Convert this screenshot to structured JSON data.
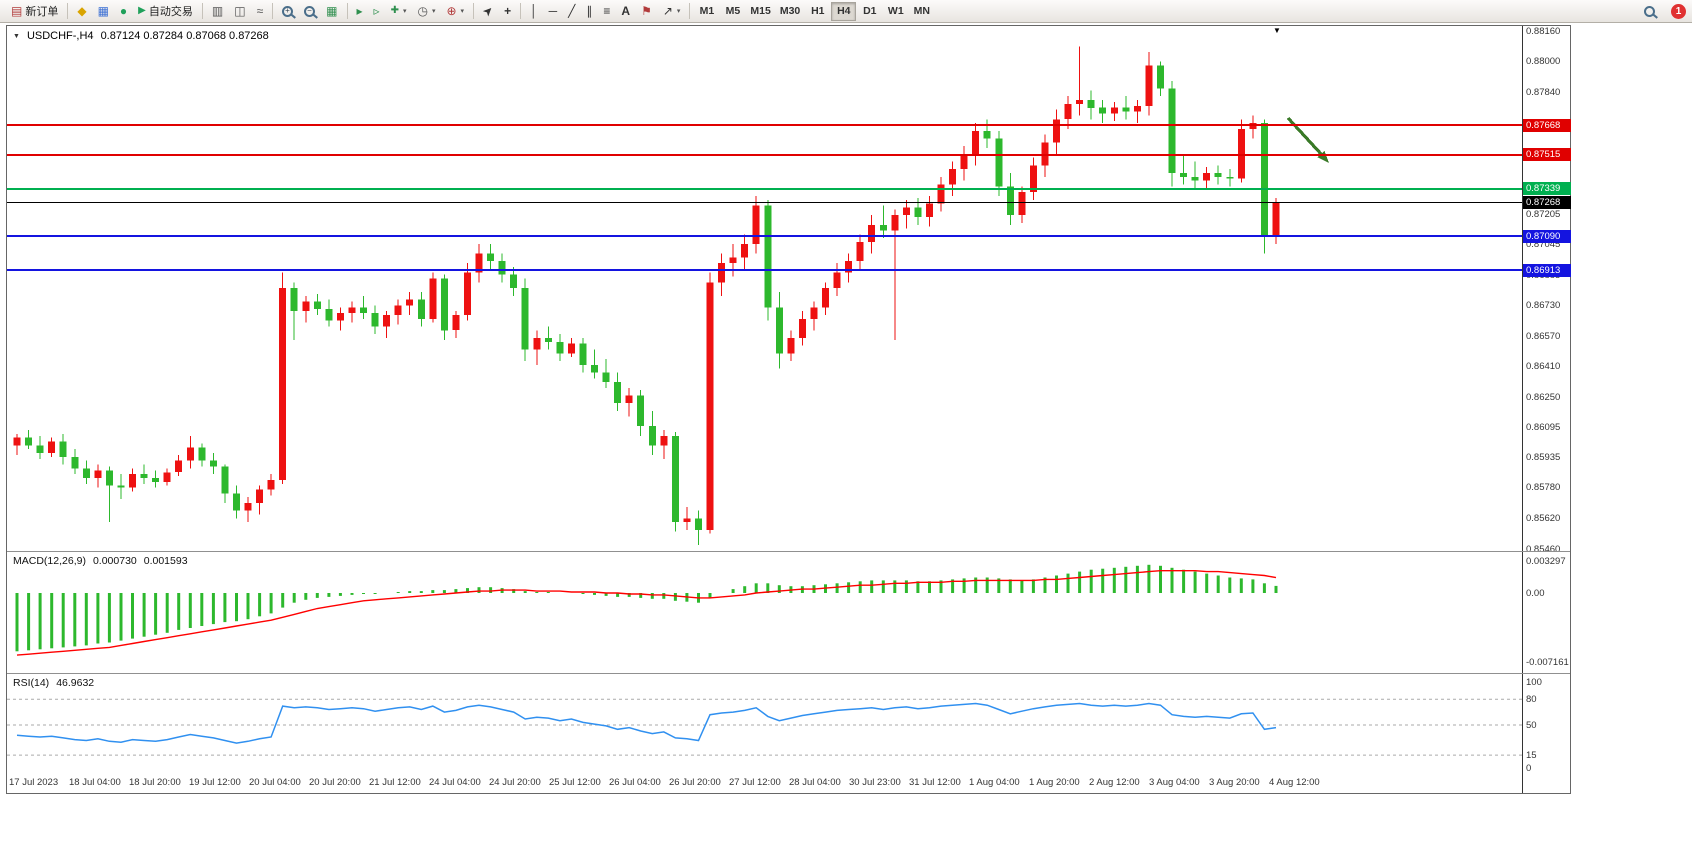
{
  "app": {
    "badge_count": "1"
  },
  "toolbar": {
    "new_order_label": "新订单",
    "auto_trading_label": "自动交易",
    "timeframes": [
      "M1",
      "M5",
      "M15",
      "M30",
      "H1",
      "H4",
      "D1",
      "W1",
      "MN"
    ],
    "active_timeframe": "H4"
  },
  "icons": {
    "new_order": "▤",
    "market_watch": "◆",
    "data_window": "▦",
    "navigator": "●",
    "autotrading_play": "▶",
    "bar_chart": "▥",
    "candle_chart": "◫",
    "line_chart": "≈",
    "tile_windows": "▦",
    "auto_scroll": "▸",
    "chart_shift": "▹",
    "new_chart": "✚",
    "periods": "◷",
    "indicators": "⊕",
    "cursor": "➤",
    "crosshair": "+",
    "vline": "│",
    "hline": "─",
    "trendline": "╱",
    "channel": "∥",
    "fibonacci": "≡",
    "text_tool": "A",
    "label_tool": "⚑",
    "shapes": "↗",
    "caret": "▾",
    "zoom_plus": "+",
    "zoom_minus": "−",
    "title_caret": "▼",
    "triangle_marker": "▼"
  },
  "chart_data": {
    "type": "candlestick",
    "symbol_period": "USDCHF-,H4",
    "ohlc_text": "0.87124 0.87284 0.87068 0.87268",
    "current_price": "0.87268",
    "convention": "red=up green=down",
    "price_axis": {
      "max": 0.8816,
      "min": 0.8546,
      "ticks": [
        "0.88160",
        "0.88000",
        "0.87840",
        "0.87205",
        "0.87045",
        "0.86885",
        "0.86730",
        "0.86570",
        "0.86410",
        "0.86250",
        "0.86095",
        "0.85935",
        "0.85780",
        "0.85620",
        "0.85460"
      ]
    },
    "hlines": [
      {
        "price": 0.87668,
        "label": "0.87668",
        "color": "#e00000",
        "width": 2,
        "role": "resistance"
      },
      {
        "price": 0.87515,
        "label": "0.87515",
        "color": "#e00000",
        "width": 2,
        "role": "resistance"
      },
      {
        "price": 0.87339,
        "label": "0.87339",
        "color": "#00b050",
        "width": 2,
        "role": "support"
      },
      {
        "price": 0.87268,
        "label": "0.87268",
        "color": "#000000",
        "width": 1,
        "role": "current-price"
      },
      {
        "price": 0.8709,
        "label": "0.87090",
        "color": "#1414e0",
        "width": 2,
        "role": "support"
      },
      {
        "price": 0.86913,
        "label": "0.86913",
        "color": "#1414e0",
        "width": 2,
        "role": "support"
      }
    ],
    "colors": {
      "up": "#ee1111",
      "down": "#2db82d",
      "macd_bar": "#2db82d",
      "macd_signal": "#ff0000",
      "rsi_line": "#3090f0",
      "arrow": "#3a7a28"
    },
    "candles": [
      [
        0.86,
        0.8606,
        0.8595,
        0.8604
      ],
      [
        0.8604,
        0.8608,
        0.8598,
        0.86
      ],
      [
        0.86,
        0.8605,
        0.8593,
        0.8596
      ],
      [
        0.8596,
        0.8604,
        0.8594,
        0.8602
      ],
      [
        0.8602,
        0.8606,
        0.859,
        0.8594
      ],
      [
        0.8594,
        0.8598,
        0.8585,
        0.8588
      ],
      [
        0.8588,
        0.8592,
        0.858,
        0.8583
      ],
      [
        0.8583,
        0.859,
        0.8578,
        0.8587
      ],
      [
        0.8587,
        0.8589,
        0.856,
        0.8579
      ],
      [
        0.8579,
        0.8585,
        0.8572,
        0.8578
      ],
      [
        0.8578,
        0.8588,
        0.8576,
        0.8585
      ],
      [
        0.8585,
        0.859,
        0.858,
        0.8583
      ],
      [
        0.8583,
        0.8587,
        0.8578,
        0.8581
      ],
      [
        0.8581,
        0.8588,
        0.8579,
        0.8586
      ],
      [
        0.8586,
        0.8595,
        0.8584,
        0.8592
      ],
      [
        0.8592,
        0.8605,
        0.8588,
        0.8599
      ],
      [
        0.8599,
        0.8601,
        0.8589,
        0.8592
      ],
      [
        0.8592,
        0.8596,
        0.8585,
        0.8589
      ],
      [
        0.8589,
        0.859,
        0.857,
        0.8575
      ],
      [
        0.8575,
        0.8579,
        0.8562,
        0.8566
      ],
      [
        0.8566,
        0.8573,
        0.856,
        0.857
      ],
      [
        0.857,
        0.8579,
        0.8564,
        0.8577
      ],
      [
        0.8577,
        0.8585,
        0.8574,
        0.8582
      ],
      [
        0.8582,
        0.869,
        0.858,
        0.8682
      ],
      [
        0.8682,
        0.8685,
        0.8655,
        0.867
      ],
      [
        0.867,
        0.8678,
        0.8664,
        0.8675
      ],
      [
        0.8675,
        0.8679,
        0.8668,
        0.8671
      ],
      [
        0.8671,
        0.8676,
        0.8662,
        0.8665
      ],
      [
        0.8665,
        0.8672,
        0.866,
        0.8669
      ],
      [
        0.8669,
        0.8675,
        0.8664,
        0.8672
      ],
      [
        0.8672,
        0.8678,
        0.8666,
        0.8669
      ],
      [
        0.8669,
        0.8673,
        0.8658,
        0.8662
      ],
      [
        0.8662,
        0.867,
        0.8656,
        0.8668
      ],
      [
        0.8668,
        0.8676,
        0.8663,
        0.8673
      ],
      [
        0.8673,
        0.868,
        0.8668,
        0.8676
      ],
      [
        0.8676,
        0.868,
        0.8662,
        0.8666
      ],
      [
        0.8666,
        0.869,
        0.8664,
        0.8687
      ],
      [
        0.8687,
        0.8689,
        0.8655,
        0.866
      ],
      [
        0.866,
        0.867,
        0.8656,
        0.8668
      ],
      [
        0.8668,
        0.8695,
        0.8665,
        0.869
      ],
      [
        0.869,
        0.8705,
        0.8685,
        0.87
      ],
      [
        0.87,
        0.8705,
        0.8692,
        0.8696
      ],
      [
        0.8696,
        0.87,
        0.8685,
        0.8689
      ],
      [
        0.8689,
        0.8693,
        0.8678,
        0.8682
      ],
      [
        0.8682,
        0.8687,
        0.8644,
        0.865
      ],
      [
        0.865,
        0.866,
        0.8642,
        0.8656
      ],
      [
        0.8656,
        0.8662,
        0.865,
        0.8654
      ],
      [
        0.8654,
        0.8658,
        0.8644,
        0.8648
      ],
      [
        0.8648,
        0.8656,
        0.8646,
        0.8653
      ],
      [
        0.8653,
        0.8656,
        0.8638,
        0.8642
      ],
      [
        0.8642,
        0.865,
        0.8635,
        0.8638
      ],
      [
        0.8638,
        0.8645,
        0.863,
        0.8633
      ],
      [
        0.8633,
        0.8638,
        0.8618,
        0.8622
      ],
      [
        0.8622,
        0.863,
        0.8615,
        0.8626
      ],
      [
        0.8626,
        0.8629,
        0.8605,
        0.861
      ],
      [
        0.861,
        0.8618,
        0.8595,
        0.86
      ],
      [
        0.86,
        0.8608,
        0.8593,
        0.8605
      ],
      [
        0.8605,
        0.8607,
        0.8555,
        0.856
      ],
      [
        0.856,
        0.8568,
        0.8556,
        0.8562
      ],
      [
        0.8562,
        0.8566,
        0.8548,
        0.8556
      ],
      [
        0.8556,
        0.869,
        0.8554,
        0.8685
      ],
      [
        0.8685,
        0.87,
        0.8678,
        0.8695
      ],
      [
        0.8695,
        0.8705,
        0.8688,
        0.8698
      ],
      [
        0.8698,
        0.871,
        0.8692,
        0.8705
      ],
      [
        0.8705,
        0.873,
        0.87,
        0.8725
      ],
      [
        0.8725,
        0.8728,
        0.8665,
        0.8672
      ],
      [
        0.8672,
        0.868,
        0.864,
        0.8648
      ],
      [
        0.8648,
        0.866,
        0.8644,
        0.8656
      ],
      [
        0.8656,
        0.867,
        0.8652,
        0.8666
      ],
      [
        0.8666,
        0.8675,
        0.866,
        0.8672
      ],
      [
        0.8672,
        0.8685,
        0.8668,
        0.8682
      ],
      [
        0.8682,
        0.8695,
        0.8678,
        0.869
      ],
      [
        0.869,
        0.87,
        0.8685,
        0.8696
      ],
      [
        0.8696,
        0.871,
        0.8692,
        0.8706
      ],
      [
        0.8706,
        0.872,
        0.87,
        0.8715
      ],
      [
        0.8715,
        0.8725,
        0.8708,
        0.8712
      ],
      [
        0.8712,
        0.8723,
        0.8655,
        0.872
      ],
      [
        0.872,
        0.8728,
        0.8713,
        0.8724
      ],
      [
        0.8724,
        0.8729,
        0.8715,
        0.8719
      ],
      [
        0.8719,
        0.873,
        0.8714,
        0.8726
      ],
      [
        0.8726,
        0.874,
        0.8722,
        0.8736
      ],
      [
        0.8736,
        0.8748,
        0.873,
        0.8744
      ],
      [
        0.8744,
        0.8756,
        0.8738,
        0.8752
      ],
      [
        0.8752,
        0.8768,
        0.8746,
        0.8764
      ],
      [
        0.8764,
        0.877,
        0.8755,
        0.876
      ],
      [
        0.876,
        0.8764,
        0.873,
        0.8735
      ],
      [
        0.8735,
        0.8742,
        0.8715,
        0.872
      ],
      [
        0.872,
        0.8735,
        0.8716,
        0.8732
      ],
      [
        0.8732,
        0.875,
        0.8728,
        0.8746
      ],
      [
        0.8746,
        0.8762,
        0.874,
        0.8758
      ],
      [
        0.8758,
        0.8775,
        0.8752,
        0.877
      ],
      [
        0.877,
        0.8782,
        0.8765,
        0.8778
      ],
      [
        0.8778,
        0.8808,
        0.8772,
        0.878
      ],
      [
        0.878,
        0.8785,
        0.877,
        0.8776
      ],
      [
        0.8776,
        0.878,
        0.8768,
        0.8773
      ],
      [
        0.8773,
        0.8779,
        0.8769,
        0.8776
      ],
      [
        0.8776,
        0.8782,
        0.877,
        0.8774
      ],
      [
        0.8774,
        0.878,
        0.8768,
        0.8777
      ],
      [
        0.8777,
        0.8805,
        0.8772,
        0.8798
      ],
      [
        0.8798,
        0.88,
        0.8782,
        0.8786
      ],
      [
        0.8786,
        0.879,
        0.8735,
        0.8742
      ],
      [
        0.8742,
        0.8752,
        0.8736,
        0.874
      ],
      [
        0.874,
        0.8748,
        0.8733,
        0.8738
      ],
      [
        0.8738,
        0.8745,
        0.8734,
        0.8742
      ],
      [
        0.8742,
        0.8746,
        0.8736,
        0.874
      ],
      [
        0.874,
        0.8744,
        0.8735,
        0.8739
      ],
      [
        0.8739,
        0.877,
        0.8737,
        0.8765
      ],
      [
        0.8765,
        0.8772,
        0.876,
        0.8768
      ],
      [
        0.8768,
        0.877,
        0.87,
        0.8709
      ],
      [
        0.8709,
        0.8729,
        0.8705,
        0.87268
      ]
    ],
    "macd": {
      "label": "MACD(12,26,9)",
      "value_main": "0.000730",
      "value_signal": "0.001593",
      "axis_labels": [
        "0.003297",
        "0.00",
        "-0.007161"
      ],
      "histogram": [
        -0.006,
        -0.0059,
        -0.0058,
        -0.0057,
        -0.0056,
        -0.0055,
        -0.0054,
        -0.0052,
        -0.0051,
        -0.0049,
        -0.0047,
        -0.0045,
        -0.0043,
        -0.0041,
        -0.0038,
        -0.0036,
        -0.0034,
        -0.0032,
        -0.003,
        -0.0029,
        -0.0027,
        -0.0024,
        -0.0021,
        -0.0015,
        -0.001,
        -0.0007,
        -0.0005,
        -0.0004,
        -0.0003,
        -0.0002,
        -0.0001,
        -0.0001,
        0.0,
        0.0001,
        0.0002,
        0.0002,
        0.0003,
        0.0003,
        0.0004,
        0.0005,
        0.0006,
        0.0006,
        0.0005,
        0.0004,
        0.0002,
        0.0001,
        0.0001,
        0.0,
        0.0,
        -0.0001,
        -0.0002,
        -0.0003,
        -0.0004,
        -0.0004,
        -0.0005,
        -0.0006,
        -0.0006,
        -0.0008,
        -0.0009,
        -0.001,
        -0.0005,
        0.0,
        0.0004,
        0.0007,
        0.001,
        0.001,
        0.0008,
        0.0007,
        0.0007,
        0.0008,
        0.0009,
        0.001,
        0.0011,
        0.0012,
        0.0013,
        0.0013,
        0.0013,
        0.0013,
        0.0012,
        0.0012,
        0.0013,
        0.0014,
        0.0015,
        0.0016,
        0.0016,
        0.0015,
        0.0014,
        0.0013,
        0.0014,
        0.0016,
        0.0018,
        0.002,
        0.0022,
        0.0024,
        0.0025,
        0.0026,
        0.0027,
        0.0028,
        0.0029,
        0.0028,
        0.0026,
        0.0024,
        0.0022,
        0.002,
        0.0018,
        0.0016,
        0.0015,
        0.0014,
        0.001,
        0.00073
      ],
      "signal": [
        -0.0064,
        -0.0063,
        -0.0062,
        -0.0061,
        -0.006,
        -0.0059,
        -0.0058,
        -0.0057,
        -0.0056,
        -0.0054,
        -0.0052,
        -0.005,
        -0.0048,
        -0.0046,
        -0.0044,
        -0.0042,
        -0.004,
        -0.0038,
        -0.0036,
        -0.0034,
        -0.0032,
        -0.003,
        -0.0028,
        -0.0025,
        -0.0022,
        -0.0019,
        -0.0016,
        -0.0014,
        -0.0012,
        -0.001,
        -0.0008,
        -0.0007,
        -0.0006,
        -0.0005,
        -0.0004,
        -0.0003,
        -0.0002,
        -0.0001,
        0.0,
        0.0001,
        0.0002,
        0.0002,
        0.0003,
        0.0003,
        0.0003,
        0.0002,
        0.0002,
        0.0002,
        0.0001,
        0.0001,
        0.0001,
        0.0,
        0.0,
        -0.0001,
        -0.0001,
        -0.0002,
        -0.0002,
        -0.0003,
        -0.0004,
        -0.0005,
        -0.0005,
        -0.0004,
        -0.0003,
        -0.0002,
        0.0,
        0.0001,
        0.0002,
        0.0003,
        0.0004,
        0.0004,
        0.0005,
        0.0006,
        0.0007,
        0.0008,
        0.0008,
        0.0009,
        0.001,
        0.001,
        0.0011,
        0.0011,
        0.0011,
        0.0012,
        0.0012,
        0.0013,
        0.0013,
        0.0013,
        0.0013,
        0.0013,
        0.0013,
        0.0014,
        0.0014,
        0.0015,
        0.0016,
        0.0017,
        0.0018,
        0.0019,
        0.002,
        0.0021,
        0.0022,
        0.0023,
        0.0023,
        0.0023,
        0.0023,
        0.0022,
        0.0022,
        0.0021,
        0.002,
        0.0019,
        0.0018,
        0.00159
      ]
    },
    "rsi": {
      "label": "RSI(14)",
      "value": "46.9632",
      "levels": [
        80,
        50,
        15
      ],
      "axis_labels": [
        "100",
        "80",
        "50",
        "15",
        "0"
      ],
      "values": [
        38,
        37,
        36,
        37,
        35,
        33,
        32,
        34,
        31,
        30,
        33,
        32,
        31,
        33,
        36,
        39,
        37,
        35,
        32,
        29,
        31,
        34,
        36,
        72,
        70,
        71,
        70,
        68,
        69,
        70,
        69,
        66,
        68,
        70,
        71,
        68,
        72,
        65,
        67,
        71,
        73,
        71,
        68,
        65,
        57,
        59,
        58,
        55,
        57,
        53,
        51,
        49,
        45,
        47,
        43,
        40,
        42,
        35,
        34,
        32,
        62,
        64,
        65,
        67,
        70,
        60,
        55,
        58,
        61,
        63,
        65,
        67,
        68,
        69,
        70,
        68,
        70,
        71,
        69,
        70,
        72,
        73,
        74,
        75,
        73,
        68,
        63,
        66,
        69,
        71,
        73,
        74,
        75,
        73,
        72,
        73,
        72,
        73,
        75,
        73,
        62,
        60,
        59,
        60,
        59,
        58,
        63,
        64,
        45,
        46.96
      ]
    },
    "time_labels": [
      "17 Jul 2023",
      "18 Jul 04:00",
      "18 Jul 20:00",
      "19 Jul 12:00",
      "20 Jul 04:00",
      "20 Jul 20:00",
      "21 Jul 12:00",
      "24 Jul 04:00",
      "24 Jul 20:00",
      "25 Jul 12:00",
      "26 Jul 04:00",
      "26 Jul 20:00",
      "27 Jul 12:00",
      "28 Jul 04:00",
      "30 Jul 23:00",
      "31 Jul 12:00",
      "1 Aug 04:00",
      "1 Aug 20:00",
      "2 Aug 12:00",
      "3 Aug 04:00",
      "3 Aug 20:00",
      "4 Aug 12:00"
    ],
    "annotation": {
      "type": "arrow",
      "direction": "down-right",
      "color": "#3a7a28"
    }
  }
}
